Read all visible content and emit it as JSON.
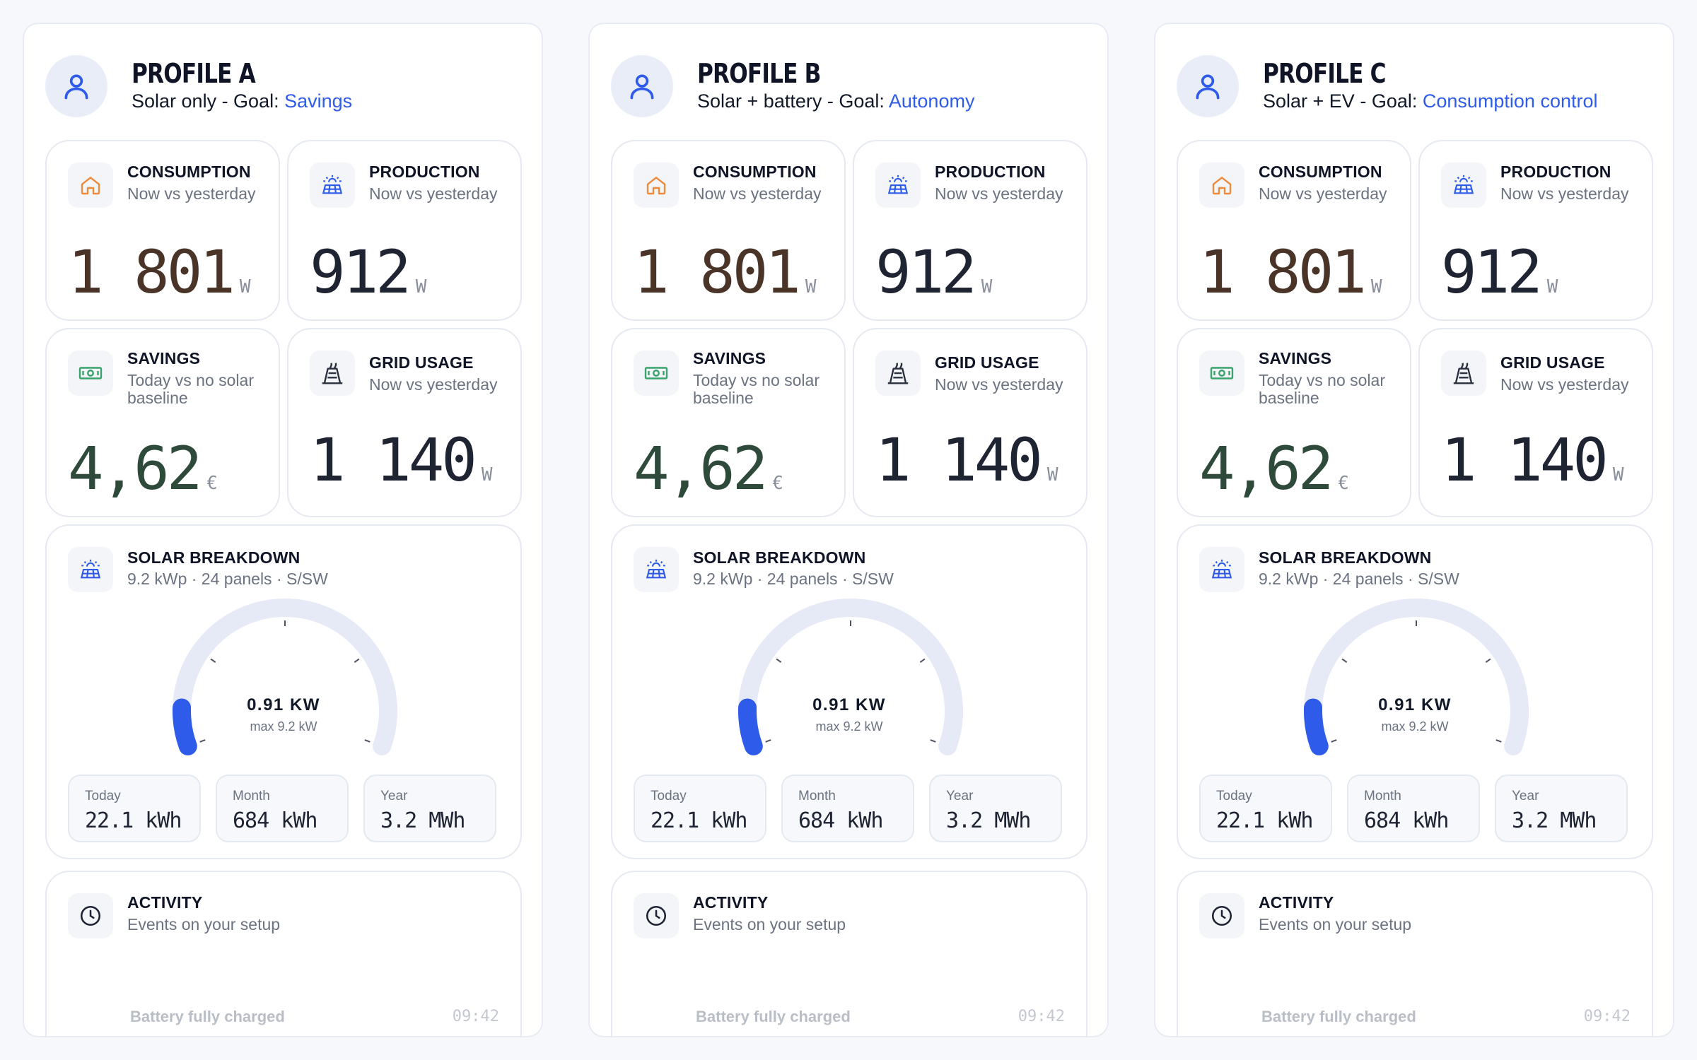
{
  "colors": {
    "accent": "#2f5bea",
    "consumption_value": "#4a3428",
    "savings_value": "#2e4a3a",
    "neutral_value": "#1f2433",
    "home_icon": "#f08a3c",
    "solar_icon": "#2f5bea",
    "savings_icon": "#3aa36a",
    "gauge_track": "#e6eaf6",
    "gauge_fill": "#2f5bea"
  },
  "profiles": [
    {
      "title": "PROFILE A",
      "subtitle_prefix": "Solar only - Goal: ",
      "goal": "Savings",
      "consumption": {
        "title": "CONSUMPTION",
        "subtitle": "Now vs yesterday",
        "value": "1 801",
        "unit": "W"
      },
      "production": {
        "title": "PRODUCTION",
        "subtitle": "Now vs yesterday",
        "value": "912",
        "unit": "W"
      },
      "savings": {
        "title": "SAVINGS",
        "subtitle": "Today vs no solar baseline",
        "value": "4,62",
        "unit": "€"
      },
      "grid": {
        "title": "GRID USAGE",
        "subtitle": "Now vs yesterday",
        "value": "1 140",
        "unit": "W"
      },
      "solar": {
        "title": "SOLAR BREAKDOWN",
        "subtitle": "9.2 kWp · 24 panels · S/SW",
        "gauge_value": "0.91 KW",
        "gauge_max": "max 9.2 kW",
        "gauge_fraction": 0.099,
        "today_label": "Today",
        "today_value": "22.1 kWh",
        "month_label": "Month",
        "month_value": "684 kWh",
        "year_label": "Year",
        "year_value": "3.2 MWh"
      },
      "activity": {
        "title": "ACTIVITY",
        "subtitle": "Events on your setup",
        "event": "Battery fully charged",
        "time": "09:42"
      }
    },
    {
      "title": "PROFILE B",
      "subtitle_prefix": "Solar + battery - Goal: ",
      "goal": "Autonomy",
      "consumption": {
        "title": "CONSUMPTION",
        "subtitle": "Now vs yesterday",
        "value": "1 801",
        "unit": "W"
      },
      "production": {
        "title": "PRODUCTION",
        "subtitle": "Now vs yesterday",
        "value": "912",
        "unit": "W"
      },
      "savings": {
        "title": "SAVINGS",
        "subtitle": "Today vs no solar baseline",
        "value": "4,62",
        "unit": "€"
      },
      "grid": {
        "title": "GRID USAGE",
        "subtitle": "Now vs yesterday",
        "value": "1 140",
        "unit": "W"
      },
      "solar": {
        "title": "SOLAR BREAKDOWN",
        "subtitle": "9.2 kWp · 24 panels · S/SW",
        "gauge_value": "0.91 KW",
        "gauge_max": "max 9.2 kW",
        "gauge_fraction": 0.099,
        "today_label": "Today",
        "today_value": "22.1 kWh",
        "month_label": "Month",
        "month_value": "684 kWh",
        "year_label": "Year",
        "year_value": "3.2 MWh"
      },
      "activity": {
        "title": "ACTIVITY",
        "subtitle": "Events on your setup",
        "event": "Battery fully charged",
        "time": "09:42"
      }
    },
    {
      "title": "PROFILE C",
      "subtitle_prefix": "Solar + EV - Goal: ",
      "goal": "Consumption control",
      "consumption": {
        "title": "CONSUMPTION",
        "subtitle": "Now vs yesterday",
        "value": "1 801",
        "unit": "W"
      },
      "production": {
        "title": "PRODUCTION",
        "subtitle": "Now vs yesterday",
        "value": "912",
        "unit": "W"
      },
      "savings": {
        "title": "SAVINGS",
        "subtitle": "Today vs no solar baseline",
        "value": "4,62",
        "unit": "€"
      },
      "grid": {
        "title": "GRID USAGE",
        "subtitle": "Now vs yesterday",
        "value": "1 140",
        "unit": "W"
      },
      "solar": {
        "title": "SOLAR BREAKDOWN",
        "subtitle": "9.2 kWp · 24 panels · S/SW",
        "gauge_value": "0.91 KW",
        "gauge_max": "max 9.2 kW",
        "gauge_fraction": 0.099,
        "today_label": "Today",
        "today_value": "22.1 kWh",
        "month_label": "Month",
        "month_value": "684 kWh",
        "year_label": "Year",
        "year_value": "3.2 MWh"
      },
      "activity": {
        "title": "ACTIVITY",
        "subtitle": "Events on your setup",
        "event": "Battery fully charged",
        "time": "09:42"
      }
    }
  ]
}
